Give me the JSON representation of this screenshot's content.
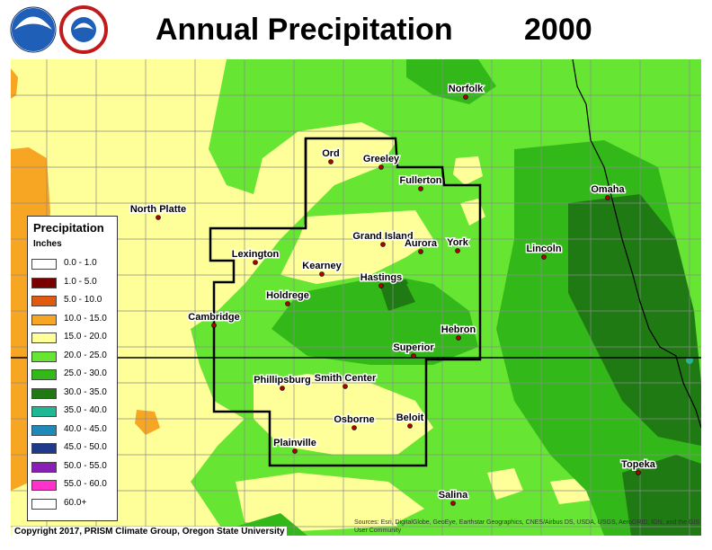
{
  "title": "Annual Precipitation",
  "year": "2000",
  "logos": [
    "noaa-logo",
    "nws-logo"
  ],
  "legend": {
    "title": "Precipitation",
    "units": "Inches",
    "items": [
      {
        "label": "0.0 - 1.0",
        "color": "#ffffff"
      },
      {
        "label": "1.0 - 5.0",
        "color": "#7a0000"
      },
      {
        "label": "5.0 - 10.0",
        "color": "#e05a10"
      },
      {
        "label": "10.0 - 15.0",
        "color": "#f7a623"
      },
      {
        "label": "15.0 - 20.0",
        "color": "#ffff99"
      },
      {
        "label": "20.0 - 25.0",
        "color": "#66e633"
      },
      {
        "label": "25.0 - 30.0",
        "color": "#33b81a"
      },
      {
        "label": "30.0 - 35.0",
        "color": "#1f7a14"
      },
      {
        "label": "35.0 - 40.0",
        "color": "#1fb894"
      },
      {
        "label": "40.0 - 45.0",
        "color": "#1f8ab8"
      },
      {
        "label": "45.0 - 50.0",
        "color": "#1f3a8a"
      },
      {
        "label": "50.0 - 55.0",
        "color": "#8a1fb8"
      },
      {
        "label": "55.0 - 60.0",
        "color": "#ff33cc"
      },
      {
        "label": "60.0+",
        "color": "#ffffff"
      }
    ]
  },
  "cities": [
    {
      "name": "Norfolk"
    },
    {
      "name": "Ord"
    },
    {
      "name": "Greeley"
    },
    {
      "name": "Fullerton"
    },
    {
      "name": "North Platte"
    },
    {
      "name": "Omaha"
    },
    {
      "name": "Grand Island"
    },
    {
      "name": "Aurora"
    },
    {
      "name": "York"
    },
    {
      "name": "Lincoln"
    },
    {
      "name": "Lexington"
    },
    {
      "name": "Kearney"
    },
    {
      "name": "Hastings"
    },
    {
      "name": "Holdrege"
    },
    {
      "name": "Cambridge"
    },
    {
      "name": "Hebron"
    },
    {
      "name": "Superior"
    },
    {
      "name": "Phillipsburg"
    },
    {
      "name": "Smith Center"
    },
    {
      "name": "Beloit"
    },
    {
      "name": "Osborne"
    },
    {
      "name": "Plainville"
    },
    {
      "name": "Topeka"
    },
    {
      "name": "Salina"
    }
  ],
  "copyright": "Copyright 2017, PRISM Climate Group, Oregon State University",
  "credits": "Sources: Esri, DigitalGlobe, GeoEye, Earthstar Geographics, CNES/Airbus DS, USDA, USGS, AeroGRID, IGN, and the GIS User Community"
}
